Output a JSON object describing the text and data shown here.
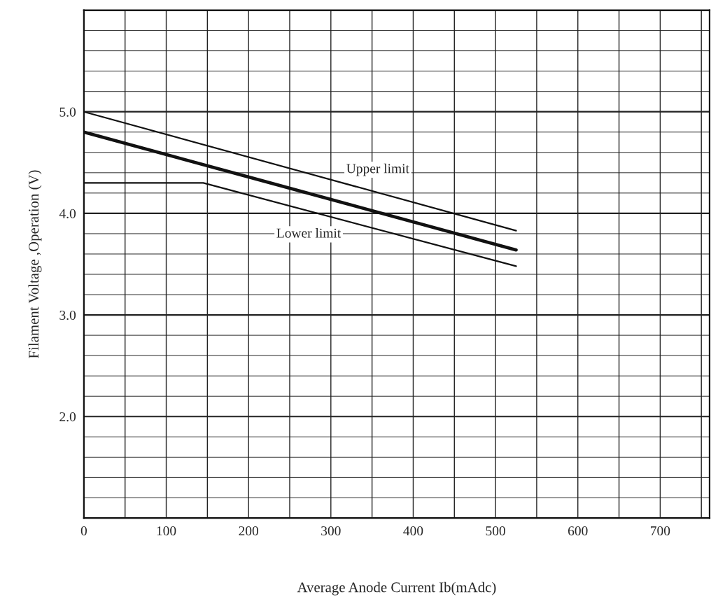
{
  "chart_data": {
    "type": "line",
    "xlabel": "Average Anode Current Ib(mAdc)",
    "ylabel": "Filament Voltage ,Operation (V)",
    "xlim": [
      0,
      760
    ],
    "ylim": [
      1.0,
      6.0
    ],
    "xticks": [
      0,
      100,
      200,
      300,
      400,
      500,
      600,
      700
    ],
    "yticks": [
      {
        "value": 1.0,
        "label": null
      },
      {
        "value": 2.0,
        "label": "2.0"
      },
      {
        "value": 3.0,
        "label": "3.0"
      },
      {
        "value": 4.0,
        "label": "4.0"
      },
      {
        "value": 5.0,
        "label": "5.0"
      },
      {
        "value": 6.0,
        "label": null
      }
    ],
    "grid": true,
    "legend": false,
    "marker": "none",
    "line_style": "solid",
    "series": [
      {
        "name": "Upper limit",
        "color": "#111111",
        "x": [
          0,
          525
        ],
        "values": [
          5.0,
          3.83
        ]
      },
      {
        "color": "#111111",
        "x": [
          0,
          525
        ],
        "values": [
          4.8,
          3.64
        ]
      },
      {
        "name": "Lower limit",
        "color": "#111111",
        "x": [
          0,
          145,
          525
        ],
        "values": [
          4.3,
          4.3,
          3.48
        ]
      }
    ]
  }
}
